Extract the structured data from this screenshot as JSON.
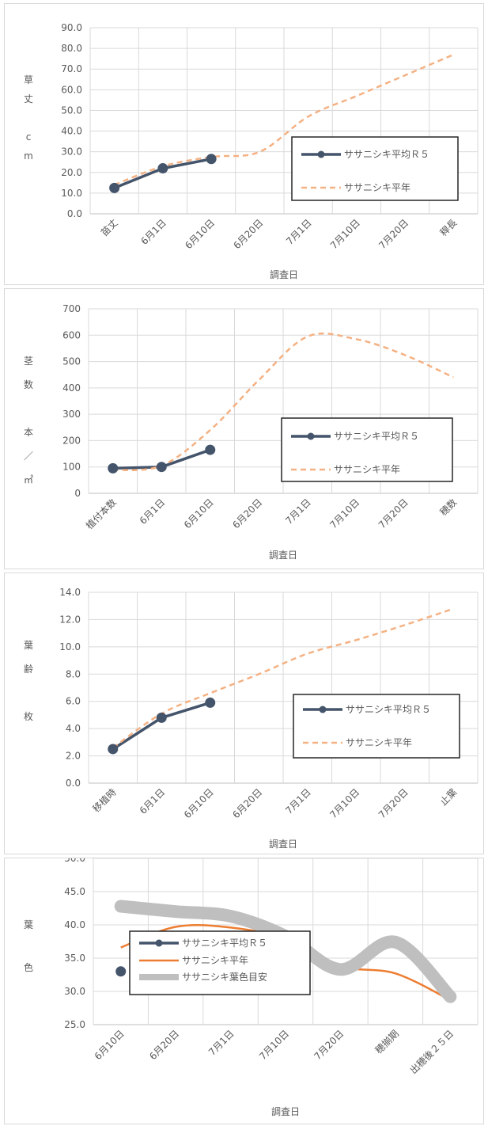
{
  "chart_data": [
    {
      "type": "line",
      "xlabel": "調査日",
      "ylabel_chars": [
        "草",
        "丈",
        "",
        "c",
        "m"
      ],
      "categories": [
        "苗丈",
        "6月1日",
        "6月10日",
        "6月20日",
        "7月1日",
        "7月10日",
        "7月20日",
        "稈長"
      ],
      "ylim": [
        0,
        90
      ],
      "yticks": [
        "0.0",
        "10.0",
        "20.0",
        "30.0",
        "40.0",
        "50.0",
        "60.0",
        "70.0",
        "80.0",
        "90.0"
      ],
      "grid": true,
      "legend": "center-right",
      "series": [
        {
          "name": "ササニシキ平均Ｒ５",
          "color": "#44546a",
          "values": [
            12.5,
            22.0,
            26.5,
            null,
            null,
            null,
            null,
            null
          ]
        },
        {
          "name": "ササニシキ平年",
          "color": "#f4b183",
          "values": [
            14.0,
            23.0,
            27.5,
            30.0,
            47.0,
            57.0,
            67.0,
            77.0
          ]
        }
      ]
    },
    {
      "type": "line",
      "xlabel": "調査日",
      "ylabel_chars": [
        "茎",
        "数",
        "",
        "本",
        "／",
        "㎡"
      ],
      "categories": [
        "植付本数",
        "6月1日",
        "6月10日",
        "6月20日",
        "7月1日",
        "7月10日",
        "7月20日",
        "穂数"
      ],
      "ylim": [
        0,
        700
      ],
      "yticks": [
        "0",
        "100",
        "200",
        "300",
        "400",
        "500",
        "600",
        "700"
      ],
      "grid": true,
      "legend": "center-right",
      "series": [
        {
          "name": "ササニシキ平均Ｒ５",
          "color": "#44546a",
          "values": [
            95,
            100,
            165,
            null,
            null,
            null,
            null,
            null
          ]
        },
        {
          "name": "ササニシキ平年",
          "color": "#f4b183",
          "values": [
            88,
            105,
            240,
            430,
            595,
            585,
            525,
            440
          ]
        }
      ]
    },
    {
      "type": "line",
      "xlabel": "調査日",
      "ylabel_chars": [
        "葉",
        "齢",
        "",
        "枚"
      ],
      "categories": [
        "移植時",
        "6月1日",
        "6月10日",
        "6月20日",
        "7月1日",
        "7月10日",
        "7月20日",
        "止葉"
      ],
      "ylim": [
        0,
        14
      ],
      "yticks": [
        "0.0",
        "2.0",
        "4.0",
        "6.0",
        "8.0",
        "10.0",
        "12.0",
        "14.0"
      ],
      "grid": true,
      "legend": "center-right",
      "series": [
        {
          "name": "ササニシキ平均Ｒ５",
          "color": "#44546a",
          "values": [
            2.5,
            4.8,
            5.9,
            null,
            null,
            null,
            null,
            null
          ]
        },
        {
          "name": "ササニシキ平年",
          "color": "#f4b183",
          "values": [
            2.6,
            5.1,
            6.6,
            8.0,
            9.5,
            10.5,
            11.6,
            12.8
          ]
        }
      ]
    },
    {
      "type": "line",
      "xlabel": "調査日",
      "ylabel_chars": [
        "葉",
        "",
        "色"
      ],
      "categories": [
        "6月10日",
        "6月20日",
        "7月1日",
        "7月10日",
        "7月20日",
        "穂揃期",
        "出穂後２５日"
      ],
      "ylim": [
        25,
        50
      ],
      "yticks": [
        "25.0",
        "30.0",
        "35.0",
        "40.0",
        "45.0",
        "50.0"
      ],
      "grid": true,
      "legend": "bottom-left",
      "series": [
        {
          "name": "ササニシキ平均Ｒ５",
          "color": "#44546a",
          "values": [
            33.0,
            null,
            null,
            null,
            null,
            null,
            null
          ]
        },
        {
          "name": "ササニシキ平年",
          "color": "#ed7d31",
          "values": [
            36.6,
            39.7,
            39.6,
            37.9,
            33.8,
            32.7,
            28.7
          ]
        },
        {
          "name": "ササニシキ葉色目安",
          "color": "#bfbfbf",
          "values": [
            42.8,
            42.0,
            41.3,
            38.3,
            33.3,
            37.4,
            29.2
          ]
        }
      ]
    }
  ]
}
